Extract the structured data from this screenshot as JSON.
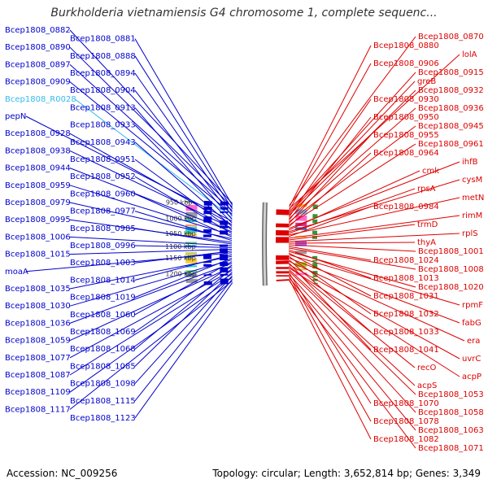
{
  "header": {
    "title": "Burkholderia vietnamiensis G4 chromosome 1, complete sequenc..."
  },
  "footer": {
    "accession": "Accession: NC_009256",
    "summary": "Topology: circular; Length: 3,652,814 bp; Genes: 3,349"
  },
  "colors": {
    "backbone": "#999999",
    "forward_strand": "#0000cc",
    "reverse_strand": "#dd0000",
    "rna_label": "#33bbee",
    "tick": "#339933"
  },
  "ticks": [
    "950 kbp",
    "1000 kbp",
    "1050 kbp",
    "1100 kbp",
    "1150 kbp",
    "1200 kbp"
  ],
  "left_labels": [
    {
      "text": "Bcep1808_0882",
      "kind": "gene"
    },
    {
      "text": "Bcep1808_0881",
      "kind": "gene"
    },
    {
      "text": "Bcep1808_0890",
      "kind": "gene"
    },
    {
      "text": "Bcep1808_0888",
      "kind": "gene"
    },
    {
      "text": "Bcep1808_0897",
      "kind": "gene"
    },
    {
      "text": "Bcep1808_0894",
      "kind": "gene"
    },
    {
      "text": "Bcep1808_0909",
      "kind": "gene"
    },
    {
      "text": "Bcep1808_0904",
      "kind": "gene"
    },
    {
      "text": "Bcep1808_R0028",
      "kind": "rna"
    },
    {
      "text": "Bcep1808_0913",
      "kind": "gene"
    },
    {
      "text": "pepN",
      "kind": "gene"
    },
    {
      "text": "Bcep1808_0933",
      "kind": "gene"
    },
    {
      "text": "Bcep1808_0928",
      "kind": "gene"
    },
    {
      "text": "Bcep1808_0943",
      "kind": "gene"
    },
    {
      "text": "Bcep1808_0938",
      "kind": "gene"
    },
    {
      "text": "Bcep1808_0951",
      "kind": "gene"
    },
    {
      "text": "Bcep1808_0944",
      "kind": "gene"
    },
    {
      "text": "Bcep1808_0952",
      "kind": "gene"
    },
    {
      "text": "Bcep1808_0959",
      "kind": "gene"
    },
    {
      "text": "Bcep1808_0960",
      "kind": "gene"
    },
    {
      "text": "Bcep1808_0979",
      "kind": "gene"
    },
    {
      "text": "Bcep1808_0977",
      "kind": "gene"
    },
    {
      "text": "Bcep1808_0995",
      "kind": "gene"
    },
    {
      "text": "Bcep1808_0985",
      "kind": "gene"
    },
    {
      "text": "Bcep1808_1006",
      "kind": "gene"
    },
    {
      "text": "Bcep1808_0996",
      "kind": "gene"
    },
    {
      "text": "Bcep1808_1015",
      "kind": "gene"
    },
    {
      "text": "Bcep1808_1003",
      "kind": "gene"
    },
    {
      "text": "moaA",
      "kind": "gene"
    },
    {
      "text": "Bcep1808_1014",
      "kind": "gene"
    },
    {
      "text": "Bcep1808_1035",
      "kind": "gene"
    },
    {
      "text": "Bcep1808_1019",
      "kind": "gene"
    },
    {
      "text": "Bcep1808_1030",
      "kind": "gene"
    },
    {
      "text": "Bcep1808_1060",
      "kind": "gene"
    },
    {
      "text": "Bcep1808_1036",
      "kind": "gene"
    },
    {
      "text": "Bcep1808_1069",
      "kind": "gene"
    },
    {
      "text": "Bcep1808_1059",
      "kind": "gene"
    },
    {
      "text": "Bcep1808_1068",
      "kind": "gene"
    },
    {
      "text": "Bcep1808_1077",
      "kind": "gene"
    },
    {
      "text": "Bcep1808_1085",
      "kind": "gene"
    },
    {
      "text": "Bcep1808_1087",
      "kind": "gene"
    },
    {
      "text": "Bcep1808_1098",
      "kind": "gene"
    },
    {
      "text": "Bcep1808_1109",
      "kind": "gene"
    },
    {
      "text": "Bcep1808_1115",
      "kind": "gene"
    },
    {
      "text": "Bcep1808_1117",
      "kind": "gene"
    },
    {
      "text": "Bcep1808_1123",
      "kind": "gene"
    }
  ],
  "right_labels": [
    {
      "text": "Bcep1808_0870"
    },
    {
      "text": "Bcep1808_0880"
    },
    {
      "text": "lolA"
    },
    {
      "text": "Bcep1808_0906"
    },
    {
      "text": "Bcep1808_0915"
    },
    {
      "text": "greB"
    },
    {
      "text": "Bcep1808_0932"
    },
    {
      "text": "Bcep1808_0930"
    },
    {
      "text": "Bcep1808_0936"
    },
    {
      "text": "Bcep1808_0950"
    },
    {
      "text": "Bcep1808_0945"
    },
    {
      "text": "Bcep1808_0955"
    },
    {
      "text": "Bcep1808_0961"
    },
    {
      "text": "Bcep1808_0964"
    },
    {
      "text": "ihfB"
    },
    {
      "text": "cmk"
    },
    {
      "text": "cysM"
    },
    {
      "text": "rpsA"
    },
    {
      "text": "metN"
    },
    {
      "text": "Bcep1808_0984"
    },
    {
      "text": "rimM"
    },
    {
      "text": "trmD"
    },
    {
      "text": "rplS"
    },
    {
      "text": "thyA"
    },
    {
      "text": "Bcep1808_1001"
    },
    {
      "text": "Bcep1808_1024"
    },
    {
      "text": "Bcep1808_1008"
    },
    {
      "text": "Bcep1808_1013"
    },
    {
      "text": "Bcep1808_1020"
    },
    {
      "text": "Bcep1808_1031"
    },
    {
      "text": "rpmF"
    },
    {
      "text": "Bcep1808_1032"
    },
    {
      "text": "fabG"
    },
    {
      "text": "Bcep1808_1033"
    },
    {
      "text": "era"
    },
    {
      "text": "Bcep1808_1041"
    },
    {
      "text": "uvrC"
    },
    {
      "text": "recO"
    },
    {
      "text": "acpP"
    },
    {
      "text": "acpS"
    },
    {
      "text": "Bcep1808_1053"
    },
    {
      "text": "Bcep1808_1070"
    },
    {
      "text": "Bcep1808_1058"
    },
    {
      "text": "Bcep1808_1078"
    },
    {
      "text": "Bcep1808_1063"
    },
    {
      "text": "Bcep1808_1082"
    },
    {
      "text": "Bcep1808_1071"
    }
  ]
}
